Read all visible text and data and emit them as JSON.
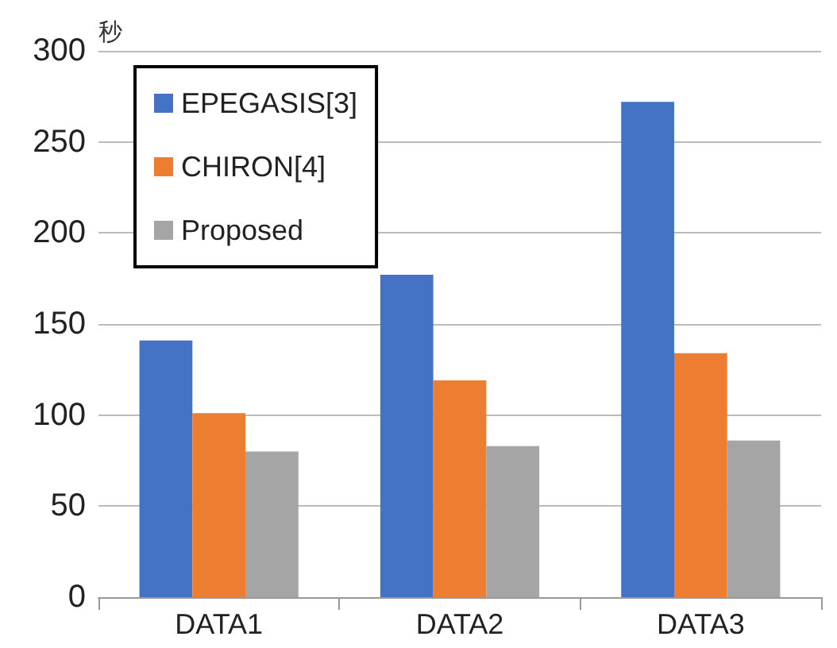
{
  "chart_data": {
    "type": "bar",
    "ylabel": "秒",
    "categories": [
      "DATA1",
      "DATA2",
      "DATA3"
    ],
    "series": [
      {
        "name": "EPEGASIS[3]",
        "color": "#4472c4",
        "values": [
          141,
          177,
          272
        ]
      },
      {
        "name": "CHIRON[4]",
        "color": "#ed7d31",
        "values": [
          101,
          119,
          134
        ]
      },
      {
        "name": "Proposed",
        "color": "#a5a5a5",
        "values": [
          80,
          83,
          86
        ]
      }
    ],
    "ylim": [
      0,
      300
    ],
    "yticks": [
      0,
      50,
      100,
      150,
      200,
      250,
      300
    ],
    "grid": "y",
    "legend": "top left"
  }
}
